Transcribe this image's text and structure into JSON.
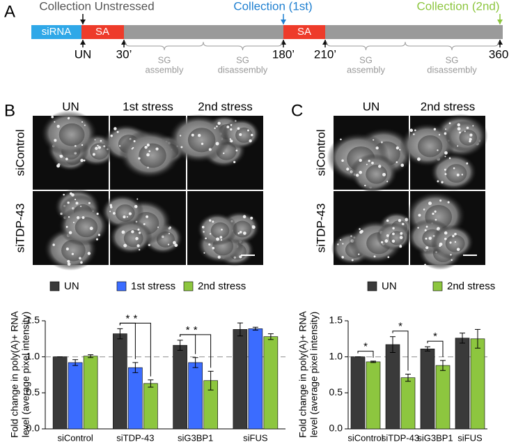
{
  "panel_labels": [
    "A",
    "B",
    "C"
  ],
  "timeline": {
    "collections": [
      "Collection Unstressed",
      "Collection (1st)",
      "Collection (2nd)"
    ],
    "segments": [
      "siRNA",
      "SA",
      "SA"
    ],
    "times": [
      "UN",
      "30’",
      "180’",
      "210’",
      "360’"
    ],
    "phases": [
      [
        "SG",
        "assembly"
      ],
      [
        "SG",
        "disassembly"
      ],
      [
        "SG",
        "assembly"
      ],
      [
        "SG",
        "disassembly"
      ]
    ]
  },
  "panel_b": {
    "columns": [
      "UN",
      "1st stress",
      "2nd stress"
    ],
    "rows": [
      "siControl",
      "siTDP-43"
    ]
  },
  "panel_c": {
    "columns": [
      "UN",
      "2nd stress"
    ],
    "rows": [
      "siControl",
      "siTDP-43"
    ]
  },
  "chart_data": [
    {
      "type": "bar",
      "ylabel": [
        "Fold change in poly(A)+ RNA",
        "level (average pixel intensity)"
      ],
      "categories": [
        "siControl",
        "siTDP-43",
        "siG3BP1",
        "siFUS"
      ],
      "series": [
        {
          "name": "UN",
          "color": "#3a3a3a",
          "values": [
            1.0,
            1.32,
            1.16,
            1.38
          ],
          "errors": [
            0,
            0.07,
            0.07,
            0.09
          ]
        },
        {
          "name": "1st stress",
          "color": "#3b6cff",
          "values": [
            0.92,
            0.85,
            0.92,
            1.39
          ],
          "errors": [
            0.04,
            0.07,
            0.07,
            0.02
          ]
        },
        {
          "name": "2nd stress",
          "color": "#8dc63f",
          "values": [
            1.01,
            0.63,
            0.67,
            1.28
          ],
          "errors": [
            0.02,
            0.05,
            0.13,
            0.04
          ]
        }
      ],
      "ylim": [
        0,
        1.5
      ],
      "yticks": [
        {
          "value": 0,
          "label": "0.0"
        },
        0.5,
        {
          "value": 1,
          "label": "1.0"
        },
        1.5
      ],
      "reference_line": 1,
      "annotations": [
        {
          "text": "*",
          "category": "siTDP-43",
          "between": [
            "UN",
            "1st stress"
          ]
        },
        {
          "text": "*",
          "category": "siTDP-43",
          "between": [
            "UN",
            "2nd stress"
          ]
        },
        {
          "text": "*",
          "category": "siG3BP1",
          "between": [
            "UN",
            "1st stress"
          ]
        },
        {
          "text": "*",
          "category": "siG3BP1",
          "between": [
            "UN",
            "2nd stress"
          ]
        }
      ]
    },
    {
      "type": "bar",
      "ylabel": [
        "Fold change in poly(A)+ RNA",
        "level (average pixel intensity)"
      ],
      "categories": [
        "siControl",
        "siTDP-43",
        "siG3BP1",
        "siFUS"
      ],
      "series": [
        {
          "name": "UN",
          "color": "#3a3a3a",
          "values": [
            1.0,
            1.17,
            1.11,
            1.26
          ],
          "errors": [
            0,
            0.11,
            0.03,
            0.07
          ]
        },
        {
          "name": "2nd stress",
          "color": "#8dc63f",
          "values": [
            0.93,
            0.71,
            0.88,
            1.25
          ],
          "errors": [
            0.01,
            0.05,
            0.07,
            0.13
          ]
        }
      ],
      "ylim": [
        0,
        1.5
      ],
      "yticks": [
        {
          "value": 0,
          "label": "0.0"
        },
        0.5,
        {
          "value": 1,
          "label": "1.0"
        },
        1.5
      ],
      "reference_line": 1,
      "annotations": [
        {
          "text": "*",
          "category": "siControl",
          "between": [
            "UN",
            "2nd stress"
          ]
        },
        {
          "text": "*",
          "category": "siTDP-43",
          "between": [
            "UN",
            "2nd stress"
          ]
        },
        {
          "text": "*",
          "category": "siG3BP1",
          "between": [
            "UN",
            "2nd stress"
          ]
        }
      ]
    }
  ]
}
